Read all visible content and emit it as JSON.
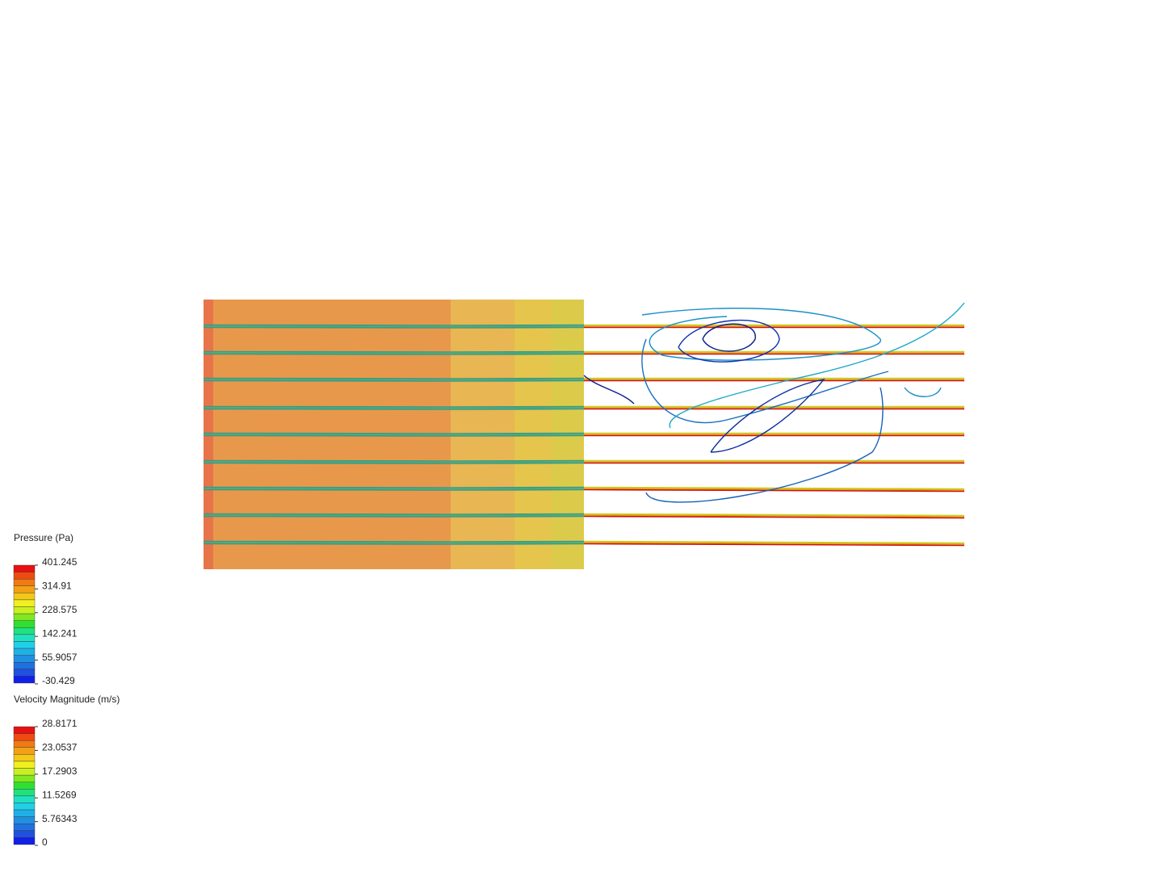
{
  "legends": [
    {
      "title": "Pressure (Pa)",
      "ticks": [
        "401.245",
        "314.91",
        "228.575",
        "142.241",
        "55.9057",
        "-30.429"
      ]
    },
    {
      "title": "Velocity Magnitude (m/s)",
      "ticks": [
        "28.8171",
        "23.0537",
        "17.2903",
        "11.5269",
        "5.76343",
        "0"
      ]
    }
  ]
}
